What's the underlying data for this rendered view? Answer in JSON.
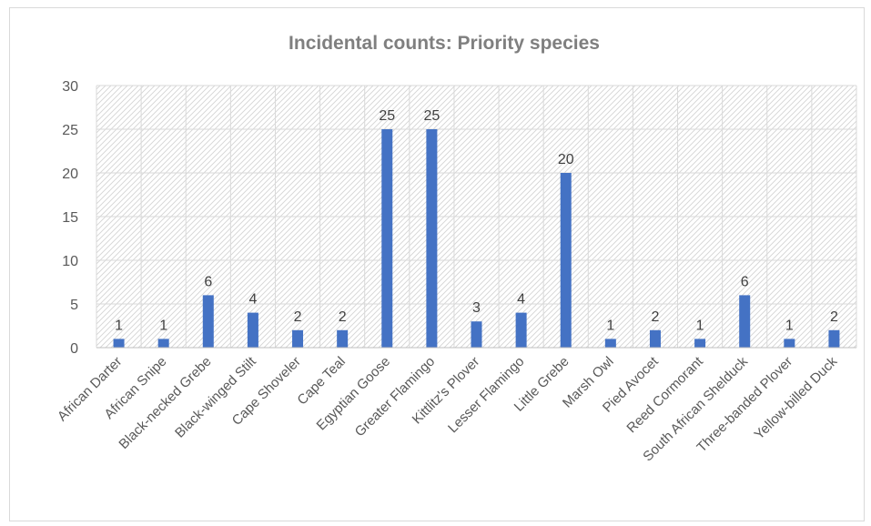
{
  "chart_data": {
    "type": "bar",
    "title": "Incidental counts: Priority species",
    "categories": [
      "African Darter",
      "African Snipe",
      "Black-necked Grebe",
      "Black-winged Stilt",
      "Cape Shoveler",
      "Cape Teal",
      "Egyptian Goose",
      "Greater Flamingo",
      "Kittlitz's Plover",
      "Lesser Flamingo",
      "Little Grebe",
      "Marsh Owl",
      "Pied Avocet",
      "Reed Cormorant",
      "South African Shelduck",
      "Three-banded Plover",
      "Yellow-billed Duck"
    ],
    "values": [
      1,
      1,
      6,
      4,
      2,
      2,
      25,
      25,
      3,
      4,
      20,
      1,
      2,
      1,
      6,
      1,
      2
    ],
    "ylim": [
      0,
      30
    ],
    "yticks": [
      0,
      5,
      10,
      15,
      20,
      25,
      30
    ],
    "xlabel": "",
    "ylabel": "",
    "grid": true,
    "data_labels": true,
    "bar_color": "#4472c4",
    "plot_pattern": "diagonal-hatch"
  }
}
